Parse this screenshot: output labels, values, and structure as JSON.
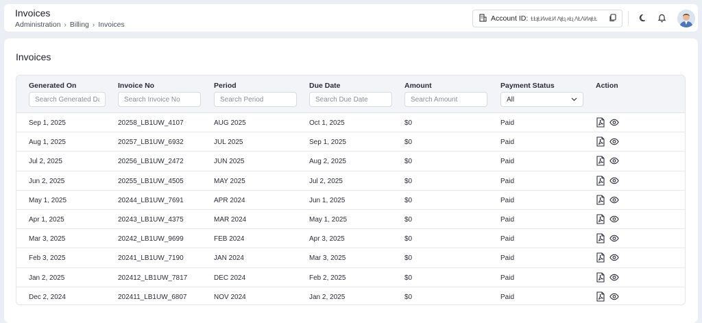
{
  "header": {
    "title": "Invoices",
    "breadcrumb": [
      "Administration",
      "Billing",
      "Invoices"
    ],
    "account_label": "Account ID:",
    "account_value": "ȽȽʅȽИʌʌȽИ ɅʅȽʅ ʌȽʅ ɅȽɅИʌʅȽȽ"
  },
  "card": {
    "title": "Invoices"
  },
  "table": {
    "columns": [
      "Generated On",
      "Invoice No",
      "Period",
      "Due Date",
      "Amount",
      "Payment Status",
      "Action"
    ],
    "filters": {
      "generated_on": "Search Generated Date",
      "invoice_no": "Search Invoice No",
      "period": "Search Period",
      "due_date": "Search Due Date",
      "amount": "Search Amount",
      "status": "All"
    },
    "rows": [
      {
        "generated": "Sep 1, 2025",
        "invoice": "20258_LB1UW_4107",
        "period": "AUG 2025",
        "due": "Oct 1, 2025",
        "amount": "$0",
        "status": "Paid"
      },
      {
        "generated": "Aug 1, 2025",
        "invoice": "20257_LB1UW_6932",
        "period": "JUL 2025",
        "due": "Sep 1, 2025",
        "amount": "$0",
        "status": "Paid"
      },
      {
        "generated": "Jul 2, 2025",
        "invoice": "20256_LB1UW_2472",
        "period": "JUN 2025",
        "due": "Aug 2, 2025",
        "amount": "$0",
        "status": "Paid"
      },
      {
        "generated": "Jun 2, 2025",
        "invoice": "20255_LB1UW_4505",
        "period": "MAY 2025",
        "due": "Jul 2, 2025",
        "amount": "$0",
        "status": "Paid"
      },
      {
        "generated": "May 1, 2025",
        "invoice": "20244_LB1UW_7691",
        "period": "APR 2024",
        "due": "Jun 1, 2025",
        "amount": "$0",
        "status": "Paid"
      },
      {
        "generated": "Apr 1, 2025",
        "invoice": "20243_LB1UW_4375",
        "period": "MAR 2024",
        "due": "May 1, 2025",
        "amount": "$0",
        "status": "Paid"
      },
      {
        "generated": "Mar 3, 2025",
        "invoice": "20242_LB1UW_9699",
        "period": "FEB 2024",
        "due": "Apr 3, 2025",
        "amount": "$0",
        "status": "Paid"
      },
      {
        "generated": "Feb 3, 2025",
        "invoice": "20241_LB1UW_7190",
        "period": "JAN 2024",
        "due": "Mar 3, 2025",
        "amount": "$0",
        "status": "Paid"
      },
      {
        "generated": "Jan 2, 2025",
        "invoice": "202412_LB1UW_7817",
        "period": "DEC 2024",
        "due": "Feb 2, 2025",
        "amount": "$0",
        "status": "Paid"
      },
      {
        "generated": "Dec 2, 2024",
        "invoice": "202411_LB1UW_6807",
        "period": "NOV 2024",
        "due": "Jan 2, 2025",
        "amount": "$0",
        "status": "Paid"
      }
    ]
  },
  "icons": {
    "account": "building-icon",
    "copy": "copy-icon",
    "theme": "moon-icon",
    "notifications": "bell-icon",
    "pdf": "pdf-file-icon",
    "view": "eye-icon"
  },
  "colors": {
    "background": "#eceef5",
    "card": "#ffffff",
    "table_header": "#f3f4f8"
  }
}
